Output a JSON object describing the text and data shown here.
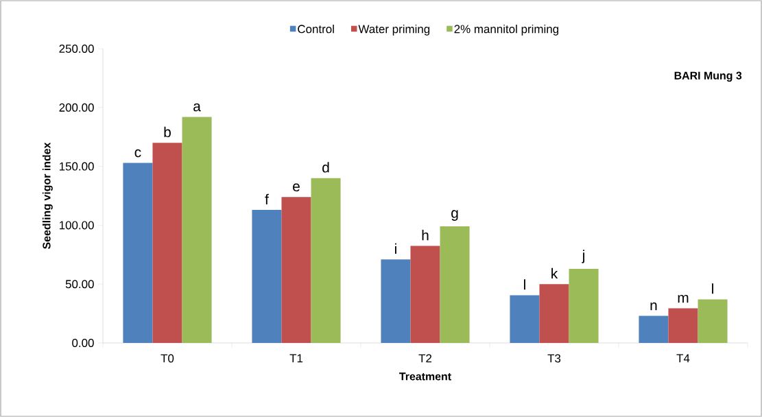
{
  "chart_data": {
    "type": "bar",
    "xlabel": "Treatment",
    "ylabel": "Seedling vigor index",
    "categories": [
      "T0",
      "T1",
      "T2",
      "T3",
      "T4"
    ],
    "series": [
      {
        "name": "Control",
        "color": "#4f81bd",
        "values": [
          153,
          113,
          71,
          40.5,
          23
        ],
        "value_labels": [
          "c",
          "f",
          "i",
          "l",
          "n"
        ]
      },
      {
        "name": "Water priming",
        "color": "#c0504d",
        "values": [
          170,
          124,
          82.5,
          50,
          29.5
        ],
        "value_labels": [
          "b",
          "e",
          "h",
          "k",
          "m"
        ]
      },
      {
        "name": "2% mannitol priming",
        "color": "#9bbb59",
        "values": [
          192,
          140,
          99,
          63,
          37
        ],
        "value_labels": [
          "a",
          "d",
          "g",
          "j",
          "l"
        ]
      }
    ],
    "ylim": [
      0,
      250
    ],
    "yticks": [
      {
        "value": 0,
        "label": "0.00"
      },
      {
        "value": 50,
        "label": "50.00"
      },
      {
        "value": 100,
        "label": "100.00"
      },
      {
        "value": 150,
        "label": "150.00"
      },
      {
        "value": 200,
        "label": "200.00"
      },
      {
        "value": 250,
        "label": "250.00"
      }
    ],
    "legend": "top",
    "grid": false,
    "annotations": [
      "BARI Mung 3"
    ]
  }
}
